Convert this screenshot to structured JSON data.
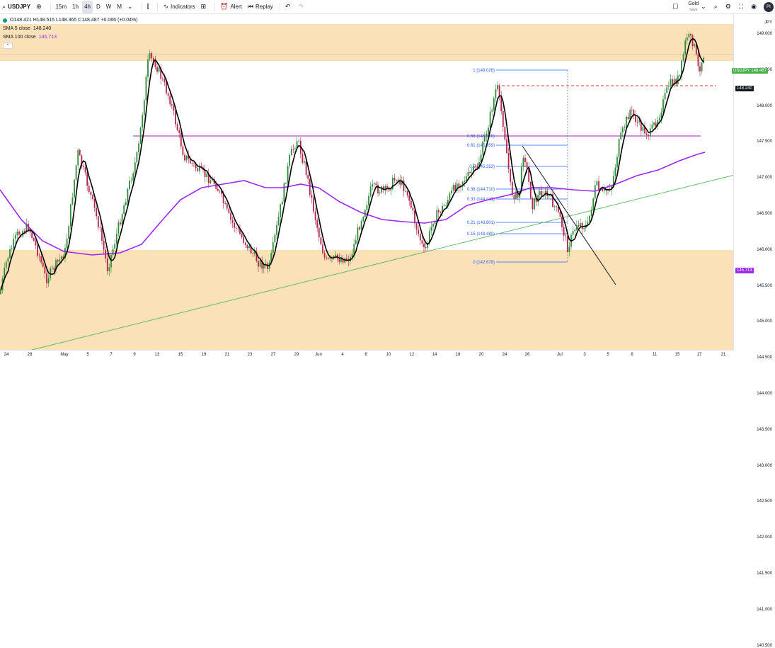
{
  "toolbar": {
    "symbol": "USDJPY",
    "intervals": [
      "15m",
      "1h",
      "4h",
      "D",
      "W",
      "M"
    ],
    "active_interval": "4h",
    "indicators_label": "Indicators",
    "alert_label": "Alert",
    "replay_label": "Replay",
    "gold_label": "Gold",
    "gold_sub": "Save",
    "avatar_initials": "Pt"
  },
  "legend": {
    "ohlc": "O148.421 H148.515 L148.365 C148.487 +0.066 (+0.04%)",
    "sma5_label": "SMA 5 close",
    "sma5_value": "148.240",
    "sma100_label": "SMA 100 close",
    "sma100_value": "145.713",
    "collapse_icon": "chevron-up"
  },
  "price_axis": {
    "currency": "JPY",
    "ticks": [
      "149.000",
      "148.500",
      "148.000",
      "147.500",
      "147.000",
      "146.500",
      "146.000",
      "145.500",
      "145.000",
      "144.500",
      "144.000",
      "143.500",
      "143.000",
      "142.500",
      "142.000",
      "141.500",
      "141.000",
      "140.500"
    ],
    "symbol_tag": "USDJPY",
    "last_price": "148.487",
    "sma5_tag": "148.240",
    "sma100_tag": "145.713"
  },
  "time_axis": {
    "labels": [
      "24",
      "28",
      "May",
      "5",
      "7",
      "9",
      "13",
      "15",
      "19",
      "21",
      "23",
      "27",
      "29",
      "Jun",
      "4",
      "6",
      "10",
      "12",
      "14",
      "18",
      "20",
      "24",
      "26",
      "Jul",
      "3",
      "5",
      "8",
      "11",
      "15",
      "17",
      "21",
      "23"
    ]
  },
  "fib_levels": [
    {
      "label": "1 (148.026)"
    },
    {
      "label": "0.66 (146.228)"
    },
    {
      "label": "0.61 (145.959)"
    },
    {
      "label": "0.5 (145.352)"
    },
    {
      "label": "0.38 (144.710)"
    },
    {
      "label": "0.33 (144.443)"
    },
    {
      "label": "0.21 (143.801)"
    },
    {
      "label": "0.15 (143.480)"
    },
    {
      "label": "0 (142.678)"
    }
  ],
  "colors": {
    "zone": "#fbe1b8",
    "sma5": "#000000",
    "sma100": "#9c27f0",
    "trendline": "#66bb6a",
    "fib": "#2962ff",
    "candle_up": "#2e8b3a",
    "candle_down": "#b2244a",
    "resistance": "#9c27b0"
  }
}
